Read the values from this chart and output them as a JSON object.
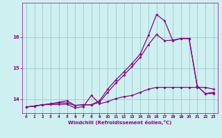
{
  "title": "",
  "xlabel": "Windchill (Refroidissement éolien,°C)",
  "bg_color": "#cff0f0",
  "line_color": "#880088",
  "grid_color": "#99cccc",
  "xlim": [
    -0.5,
    23.5
  ],
  "ylim": [
    13.55,
    17.1
  ],
  "xticks": [
    0,
    1,
    2,
    3,
    4,
    5,
    6,
    7,
    8,
    9,
    10,
    11,
    12,
    13,
    14,
    15,
    16,
    17,
    18,
    19,
    20,
    21,
    22,
    23
  ],
  "yticks": [
    14,
    15,
    16
  ],
  "line1_x": [
    0,
    1,
    2,
    3,
    4,
    5,
    6,
    7,
    8,
    9,
    10,
    11,
    12,
    13,
    14,
    15,
    16,
    17,
    18,
    19,
    20,
    21,
    22,
    23
  ],
  "line1_y": [
    13.75,
    13.78,
    13.82,
    13.83,
    13.83,
    13.84,
    13.72,
    13.76,
    14.12,
    13.85,
    13.92,
    14.02,
    14.08,
    14.12,
    14.22,
    14.32,
    14.38,
    14.38,
    14.38,
    14.38,
    14.38,
    14.38,
    14.38,
    14.32
  ],
  "line2_x": [
    0,
    1,
    2,
    3,
    4,
    5,
    6,
    7,
    8,
    9,
    10,
    11,
    12,
    13,
    14,
    15,
    16,
    17,
    18,
    19,
    20,
    21,
    22,
    23
  ],
  "line2_y": [
    13.75,
    13.78,
    13.82,
    13.85,
    13.88,
    13.88,
    13.8,
    13.82,
    13.82,
    13.9,
    14.22,
    14.52,
    14.78,
    15.05,
    15.35,
    15.75,
    16.08,
    15.88,
    15.9,
    15.95,
    15.95,
    14.42,
    14.18,
    14.18
  ],
  "line3_x": [
    0,
    1,
    2,
    3,
    4,
    5,
    6,
    7,
    8,
    9,
    10,
    11,
    12,
    13,
    14,
    15,
    16,
    17,
    18,
    19,
    20,
    21,
    22,
    23
  ],
  "line3_y": [
    13.75,
    13.78,
    13.82,
    13.85,
    13.9,
    13.95,
    13.8,
    13.82,
    13.82,
    13.95,
    14.32,
    14.62,
    14.88,
    15.15,
    15.45,
    16.05,
    16.72,
    16.52,
    15.88,
    15.95,
    15.95,
    14.42,
    14.18,
    14.22
  ]
}
